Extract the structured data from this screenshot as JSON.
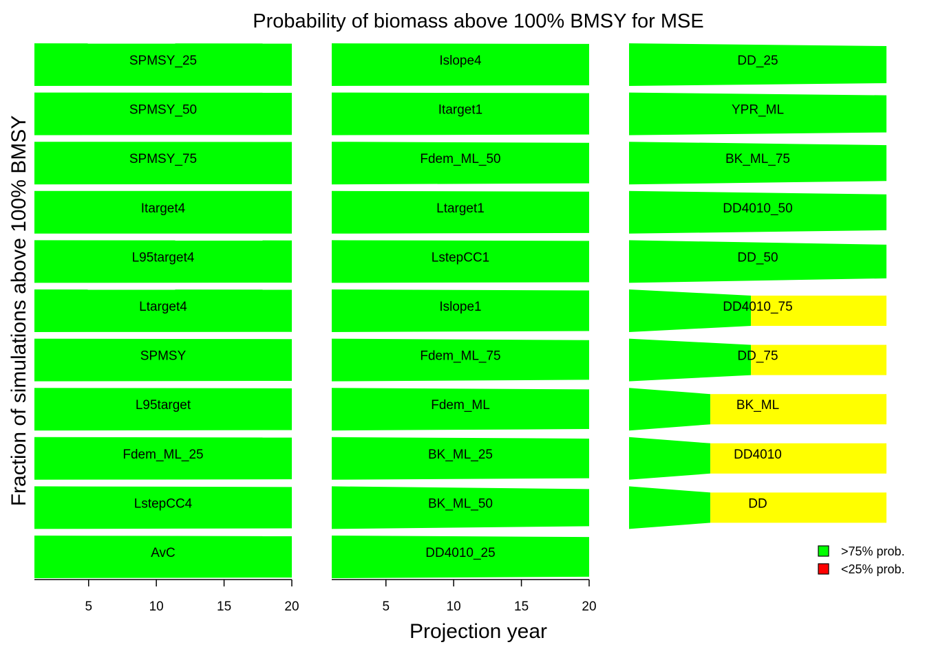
{
  "chart_data": {
    "type": "area",
    "title": "Probability of biomass above 100% BMSY for MSE",
    "xlabel": "Projection year",
    "ylabel": "Fraction of simulations above 100% BMSY",
    "xlim": [
      1,
      20
    ],
    "xticks": [
      5,
      10,
      15,
      20
    ],
    "ylim": [
      0,
      1
    ],
    "colors": {
      "high": "#00FF00",
      "mid": "#FFFF00",
      "low": "#FF0000"
    },
    "legend": {
      "position": "bottom-right",
      "entries": [
        {
          "label": ">75% prob.",
          "color": "#00FF00"
        },
        {
          "label": "<25% prob.",
          "color": "#FF0000"
        }
      ]
    },
    "panels": [
      {
        "name": "SPMSY_25",
        "column": 1,
        "row": 1,
        "start": 1.0,
        "end": 0.99,
        "change_year": null
      },
      {
        "name": "SPMSY_50",
        "column": 1,
        "row": 2,
        "start": 1.0,
        "end": 0.99,
        "change_year": null
      },
      {
        "name": "SPMSY_75",
        "column": 1,
        "row": 3,
        "start": 1.0,
        "end": 0.99,
        "change_year": null
      },
      {
        "name": "Itarget4",
        "column": 1,
        "row": 4,
        "start": 1.0,
        "end": 1.0,
        "change_year": null
      },
      {
        "name": "L95target4",
        "column": 1,
        "row": 5,
        "start": 1.0,
        "end": 0.99,
        "change_year": null
      },
      {
        "name": "Ltarget4",
        "column": 1,
        "row": 6,
        "start": 1.0,
        "end": 0.99,
        "change_year": null
      },
      {
        "name": "SPMSY",
        "column": 1,
        "row": 7,
        "start": 1.0,
        "end": 0.98,
        "change_year": null
      },
      {
        "name": "L95target",
        "column": 1,
        "row": 8,
        "start": 1.0,
        "end": 0.98,
        "change_year": null
      },
      {
        "name": "Fdem_ML_25",
        "column": 1,
        "row": 9,
        "start": 1.0,
        "end": 0.98,
        "change_year": null
      },
      {
        "name": "LstepCC4",
        "column": 1,
        "row": 10,
        "start": 1.0,
        "end": 0.97,
        "change_year": null
      },
      {
        "name": "AvC",
        "column": 1,
        "row": 11,
        "start": 1.0,
        "end": 0.97,
        "change_year": null
      },
      {
        "name": "Islope4",
        "column": 2,
        "row": 1,
        "start": 1.0,
        "end": 0.97,
        "change_year": null
      },
      {
        "name": "Itarget1",
        "column": 2,
        "row": 2,
        "start": 1.0,
        "end": 0.97,
        "change_year": null
      },
      {
        "name": "Fdem_ML_50",
        "column": 2,
        "row": 3,
        "start": 1.0,
        "end": 0.95,
        "change_year": null
      },
      {
        "name": "Ltarget1",
        "column": 2,
        "row": 4,
        "start": 1.0,
        "end": 0.97,
        "change_year": null
      },
      {
        "name": "LstepCC1",
        "column": 2,
        "row": 5,
        "start": 1.0,
        "end": 0.97,
        "change_year": null
      },
      {
        "name": "Islope1",
        "column": 2,
        "row": 6,
        "start": 1.0,
        "end": 0.95,
        "change_year": null
      },
      {
        "name": "Fdem_ML_75",
        "column": 2,
        "row": 7,
        "start": 1.0,
        "end": 0.93,
        "change_year": null
      },
      {
        "name": "Fdem_ML",
        "column": 2,
        "row": 8,
        "start": 1.0,
        "end": 0.93,
        "change_year": null
      },
      {
        "name": "BK_ML_25",
        "column": 2,
        "row": 9,
        "start": 1.0,
        "end": 0.93,
        "change_year": null
      },
      {
        "name": "BK_ML_50",
        "column": 2,
        "row": 10,
        "start": 1.0,
        "end": 0.87,
        "change_year": null
      },
      {
        "name": "DD4010_25",
        "column": 2,
        "row": 11,
        "start": 1.0,
        "end": 0.93,
        "change_year": null
      },
      {
        "name": "DD_25",
        "column": 3,
        "row": 1,
        "start": 1.0,
        "end": 0.87,
        "change_year": null
      },
      {
        "name": "YPR_ML",
        "column": 3,
        "row": 2,
        "start": 1.0,
        "end": 0.87,
        "change_year": null
      },
      {
        "name": "BK_ML_75",
        "column": 3,
        "row": 3,
        "start": 1.0,
        "end": 0.84,
        "change_year": null
      },
      {
        "name": "DD4010_50",
        "column": 3,
        "row": 4,
        "start": 1.0,
        "end": 0.84,
        "change_year": null
      },
      {
        "name": "DD_50",
        "column": 3,
        "row": 5,
        "start": 1.0,
        "end": 0.79,
        "change_year": null
      },
      {
        "name": "DD4010_75",
        "column": 3,
        "row": 6,
        "start": 1.0,
        "end": 0.71,
        "change_year": 10
      },
      {
        "name": "DD_75",
        "column": 3,
        "row": 7,
        "start": 1.0,
        "end": 0.71,
        "change_year": 10
      },
      {
        "name": "BK_ML",
        "column": 3,
        "row": 8,
        "start": 1.0,
        "end": 0.71,
        "change_year": 7
      },
      {
        "name": "DD4010",
        "column": 3,
        "row": 9,
        "start": 1.0,
        "end": 0.71,
        "change_year": 7
      },
      {
        "name": "DD",
        "column": 3,
        "row": 10,
        "start": 1.0,
        "end": 0.71,
        "change_year": 7
      }
    ]
  }
}
